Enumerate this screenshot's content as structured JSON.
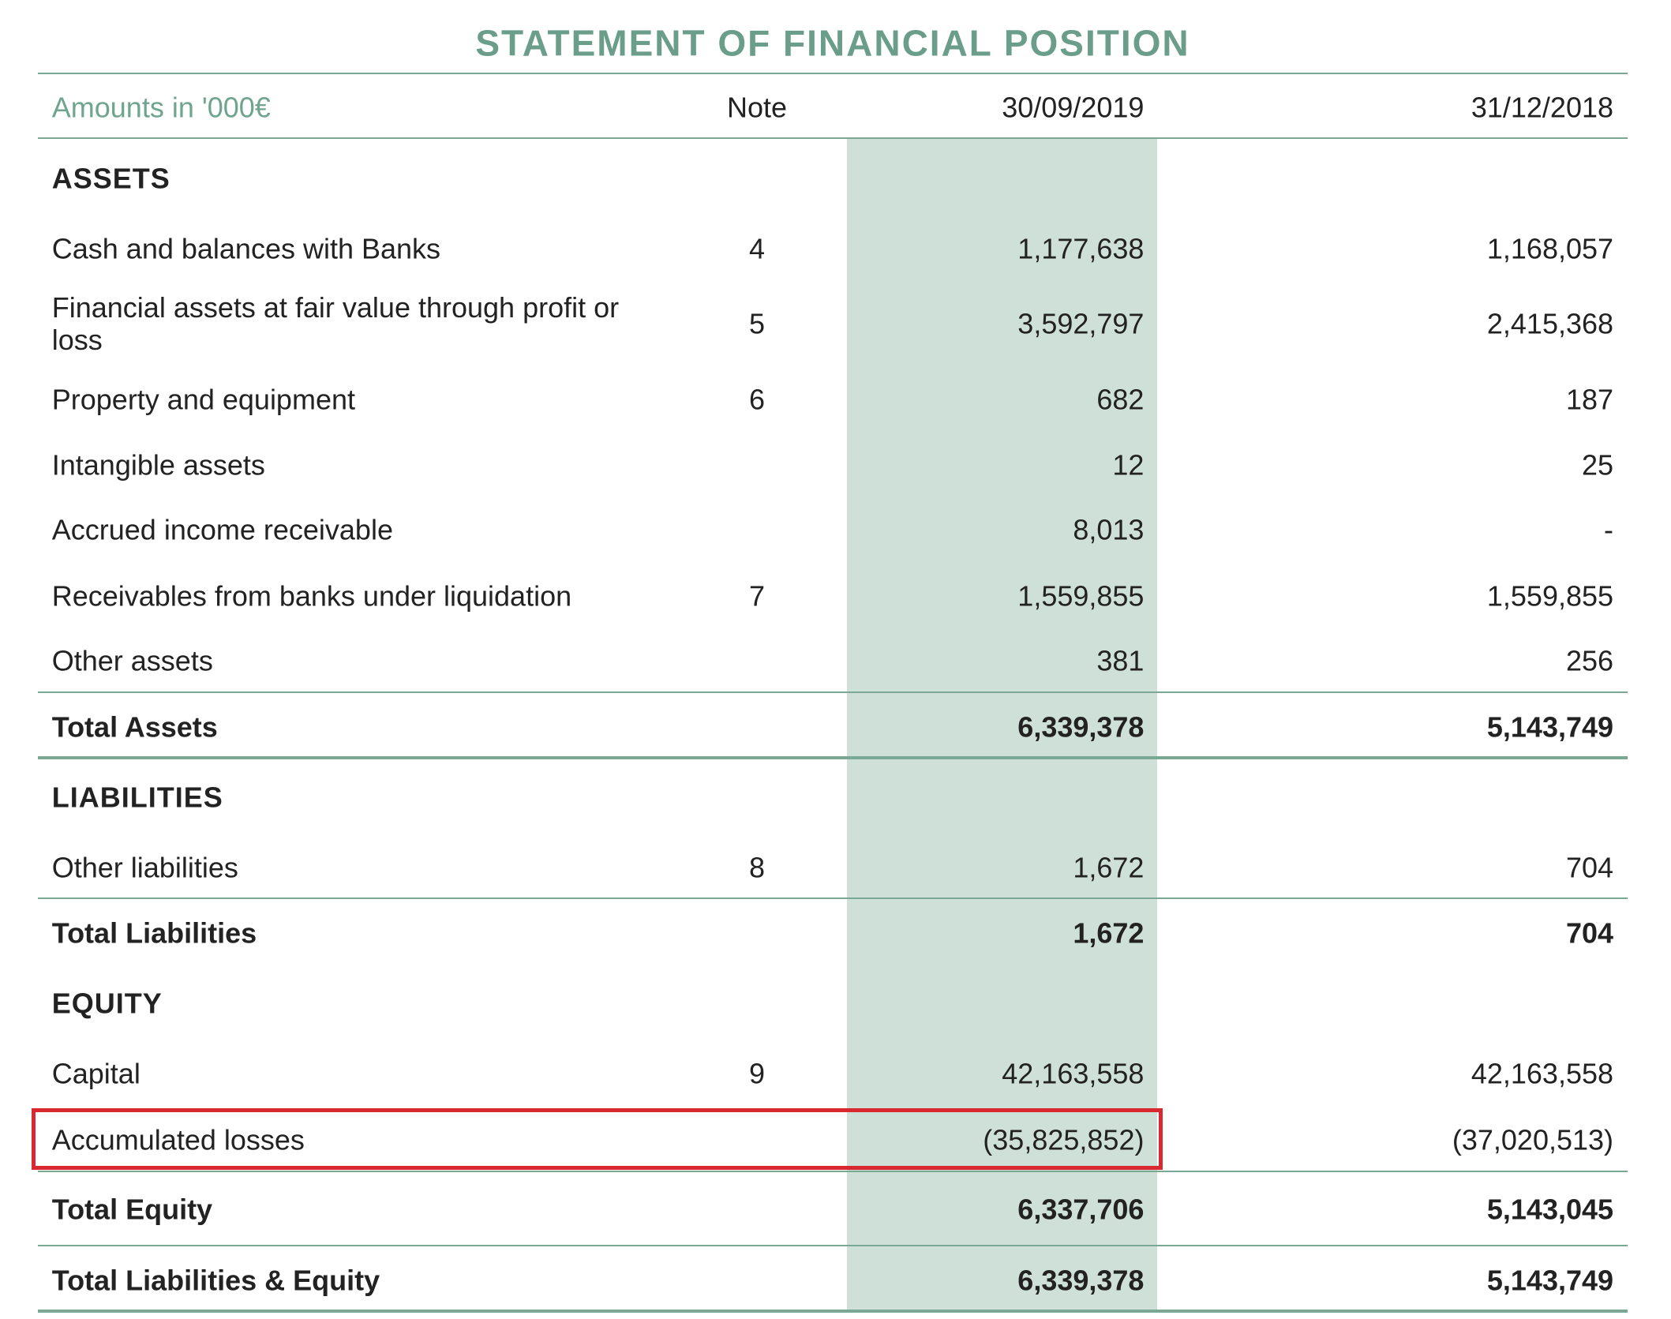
{
  "title": "STATEMENT OF FINANCIAL POSITION",
  "header": {
    "label": "Amounts in '000€",
    "note": "Note",
    "columns": [
      "30/09/2019",
      "31/12/2018"
    ]
  },
  "sections": [
    {
      "heading": "ASSETS",
      "rows": [
        [
          "Cash and balances with Banks",
          "4",
          "1,177,638",
          "1,168,057"
        ],
        [
          "Financial assets at fair value through profit or loss",
          "5",
          "3,592,797",
          "2,415,368"
        ],
        [
          "Property and equipment",
          "6",
          "682",
          "187"
        ],
        [
          "Intangible assets",
          null,
          "12",
          "25"
        ],
        [
          "Accrued income receivable",
          null,
          "8,013",
          "-"
        ],
        [
          "Receivables from banks under liquidation",
          "7",
          "1,559,855",
          "1,559,855"
        ],
        [
          "Other assets",
          null,
          "381",
          "256"
        ]
      ],
      "total": [
        "Total Assets",
        "6,339,378",
        "5,143,749"
      ]
    },
    {
      "heading": "LIABILITIES",
      "rows": [
        [
          "Other liabilities",
          "8",
          "1,672",
          "704"
        ]
      ],
      "total": [
        "Total Liabilities",
        "1,672",
        "704"
      ]
    },
    {
      "heading": "EQUITY",
      "rows": [
        [
          "Capital",
          "9",
          "42,163,558",
          "42,163,558"
        ],
        [
          "Accumulated losses",
          null,
          "(35,825,852)",
          "(37,020,513)"
        ]
      ],
      "total": [
        "Total Equity",
        "6,337,706",
        "5,143,045"
      ]
    }
  ],
  "grand_total": [
    "Total Liabilities & Equity",
    "6,339,378",
    "5,143,749"
  ]
}
